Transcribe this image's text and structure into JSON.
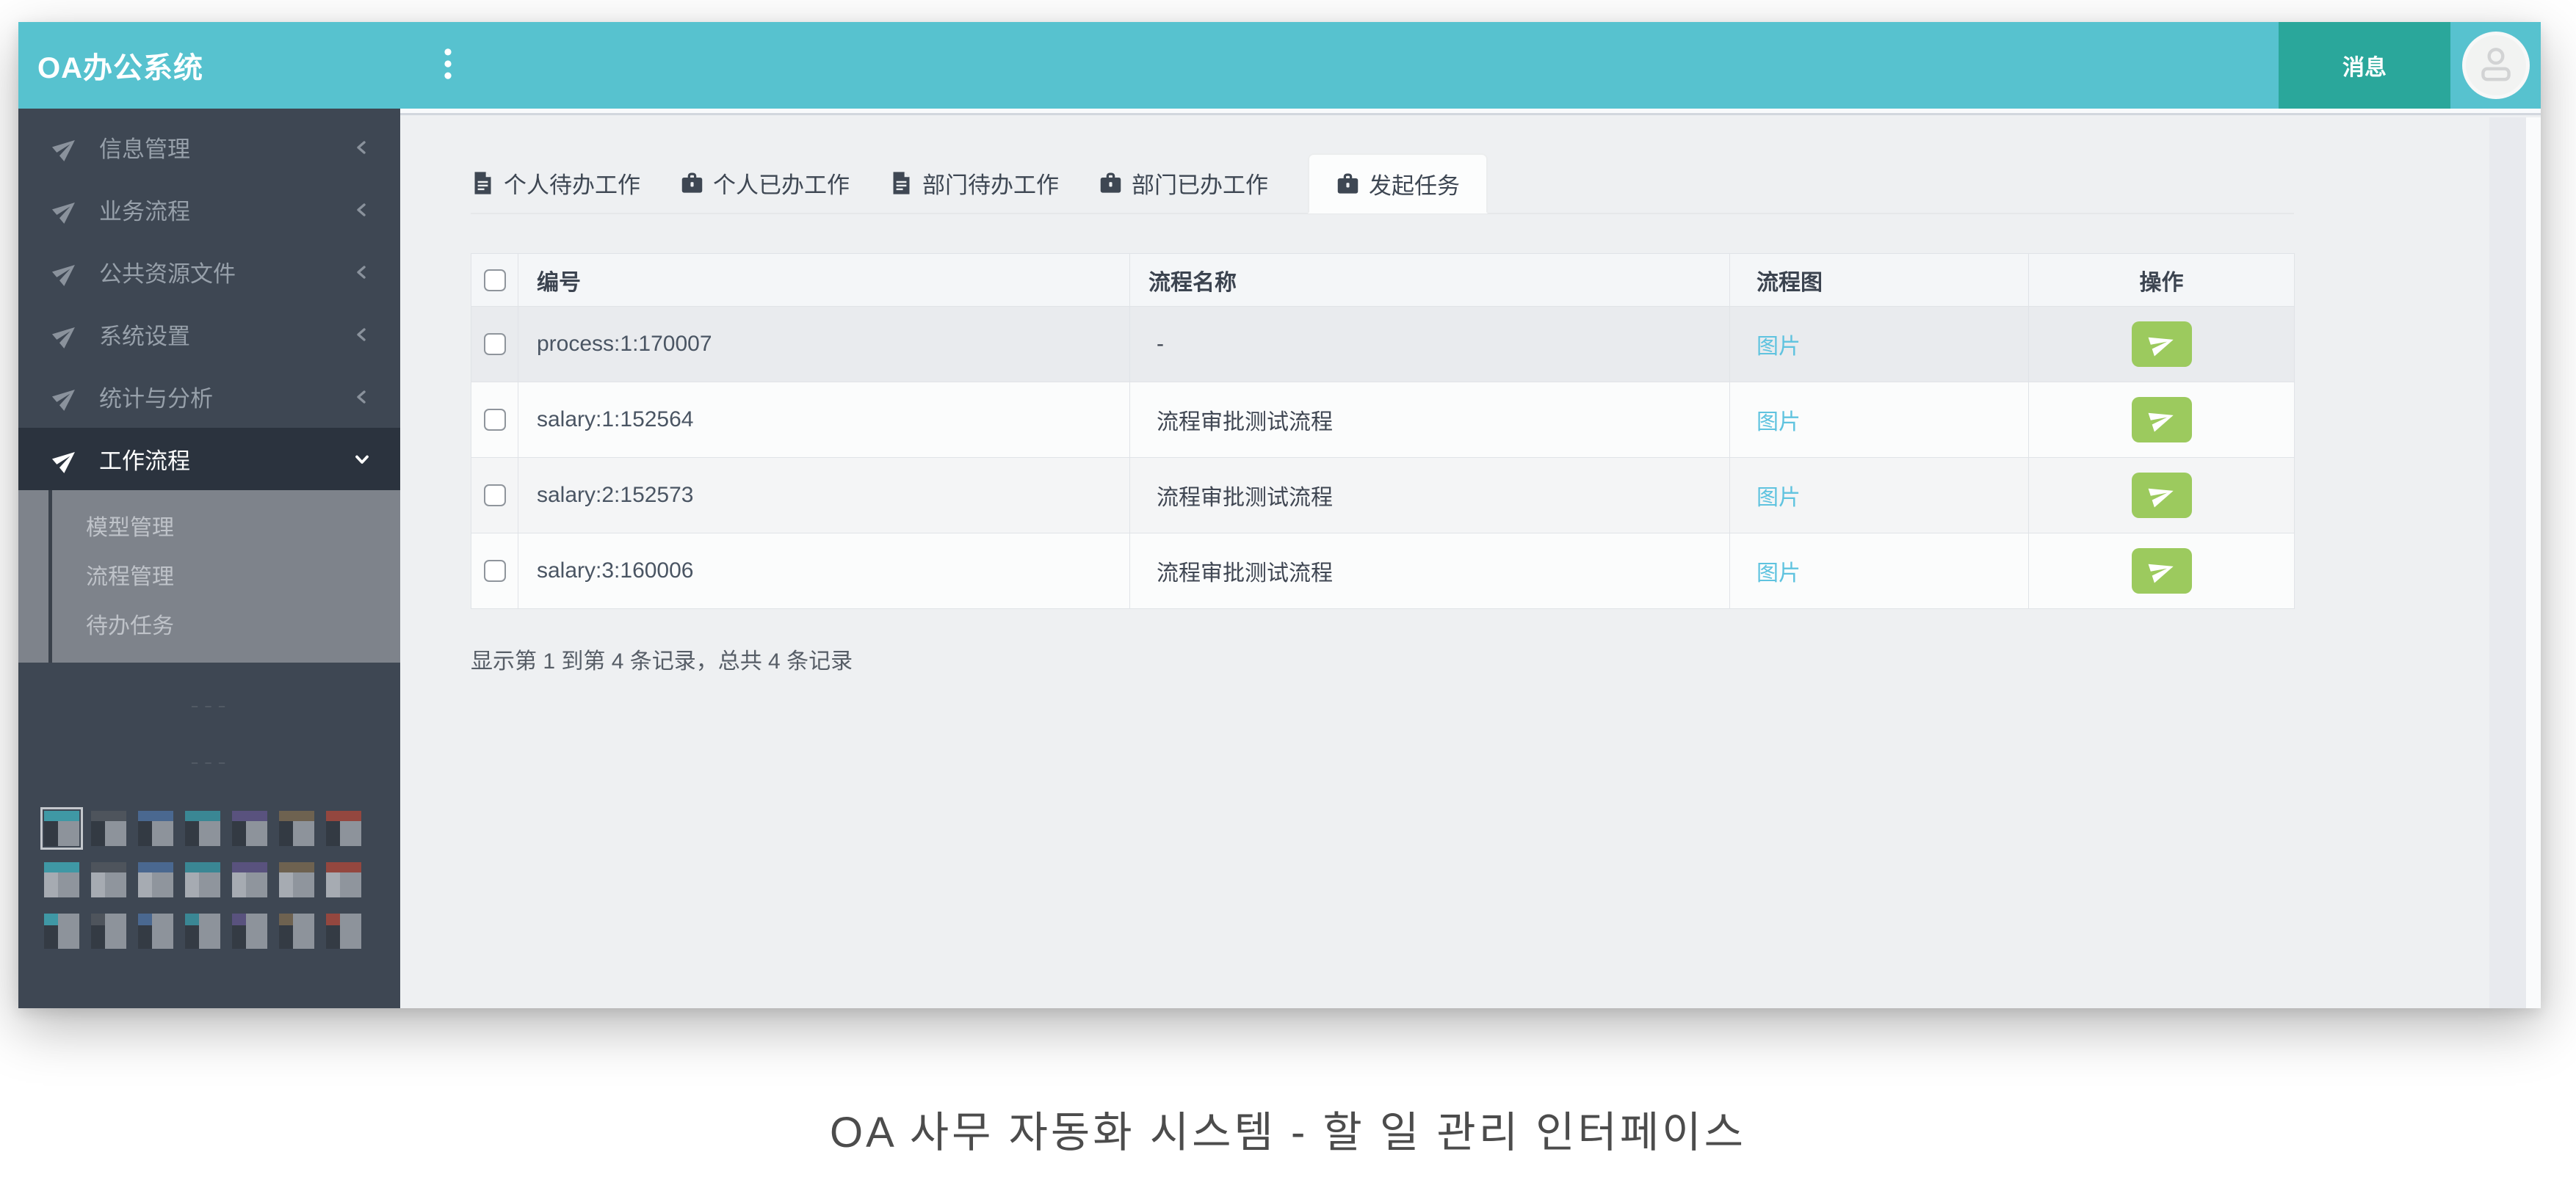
{
  "colors": {
    "header_teal": "#57c2cf",
    "message_teal": "#2aa79b",
    "send_green": "#9cca5e",
    "link_blue": "#5fc3df",
    "sidebar_dark": "#3e4753"
  },
  "header": {
    "logo": "OA办公系统",
    "toggle_icon": "vertical-ellipsis-icon",
    "message_label": "消息",
    "avatar_icon": "person-icon"
  },
  "sidebar": {
    "items": [
      {
        "label": "信息管理",
        "icon": "rocket-icon",
        "chevron": "chevron-left-icon",
        "active": false
      },
      {
        "label": "业务流程",
        "icon": "rocket-icon",
        "chevron": "chevron-left-icon",
        "active": false
      },
      {
        "label": "公共资源文件",
        "icon": "rocket-icon",
        "chevron": "chevron-left-icon",
        "active": false
      },
      {
        "label": "系统设置",
        "icon": "rocket-icon",
        "chevron": "chevron-left-icon",
        "active": false
      },
      {
        "label": "统计与分析",
        "icon": "rocket-icon",
        "chevron": "chevron-left-icon",
        "active": false
      },
      {
        "label": "工作流程",
        "icon": "rocket-icon",
        "chevron": "chevron-down-icon",
        "active": true
      }
    ],
    "submenu": [
      {
        "label": "模型管理"
      },
      {
        "label": "流程管理"
      },
      {
        "label": "待办任务"
      }
    ],
    "markers": {
      "m1": "– – –",
      "m2": "– – –"
    },
    "themes": [
      {
        "style": "dark",
        "color": "#3f98a5",
        "selected": true
      },
      {
        "style": "dark",
        "color": "#4e545c",
        "selected": false
      },
      {
        "style": "dark",
        "color": "#4a6890",
        "selected": false
      },
      {
        "style": "dark",
        "color": "#3a8794",
        "selected": false
      },
      {
        "style": "dark",
        "color": "#59527e",
        "selected": false
      },
      {
        "style": "dark",
        "color": "#6e6250",
        "selected": false
      },
      {
        "style": "dark",
        "color": "#94473f",
        "selected": false
      },
      {
        "style": "light",
        "color": "#3f98a5",
        "selected": false
      },
      {
        "style": "light",
        "color": "#4e545c",
        "selected": false
      },
      {
        "style": "light",
        "color": "#4a6890",
        "selected": false
      },
      {
        "style": "light",
        "color": "#3a8794",
        "selected": false
      },
      {
        "style": "light",
        "color": "#59527e",
        "selected": false
      },
      {
        "style": "light",
        "color": "#6e6250",
        "selected": false
      },
      {
        "style": "light",
        "color": "#94473f",
        "selected": false
      },
      {
        "style": "boxed",
        "color": "#3f98a5",
        "selected": false
      },
      {
        "style": "boxed",
        "color": "#4e545c",
        "selected": false
      },
      {
        "style": "boxed",
        "color": "#4a6890",
        "selected": false
      },
      {
        "style": "boxed",
        "color": "#3a8794",
        "selected": false
      },
      {
        "style": "boxed",
        "color": "#59527e",
        "selected": false
      },
      {
        "style": "boxed",
        "color": "#6e6250",
        "selected": false
      },
      {
        "style": "boxed",
        "color": "#94473f",
        "selected": false
      }
    ]
  },
  "tabs": [
    {
      "label": "个人待办工作",
      "icon": "file-icon",
      "active": false
    },
    {
      "label": "个人已办工作",
      "icon": "briefcase-icon",
      "active": false
    },
    {
      "label": "部门待办工作",
      "icon": "file-icon",
      "active": false
    },
    {
      "label": "部门已办工作",
      "icon": "briefcase-icon",
      "active": false
    },
    {
      "label": "发起任务",
      "icon": "briefcase-icon",
      "active": true
    }
  ],
  "table": {
    "columns": {
      "id": "编号",
      "name": "流程名称",
      "diagram": "流程图",
      "action": "操作"
    },
    "send_icon": "send-icon",
    "rows": [
      {
        "id": "process:1:170007",
        "name": "-",
        "diagram": "图片",
        "shade": "dark"
      },
      {
        "id": "salary:1:152564",
        "name": "流程审批测试流程",
        "diagram": "图片",
        "shade": "light"
      },
      {
        "id": "salary:2:152573",
        "name": "流程审批测试流程",
        "diagram": "图片",
        "shade": "mid"
      },
      {
        "id": "salary:3:160006",
        "name": "流程审批测试流程",
        "diagram": "图片",
        "shade": "light"
      }
    ],
    "summary": "显示第 1 到第 4 条记录，总共 4 条记录"
  },
  "caption": "OA 사무 자동화 시스템 - 할 일 관리 인터페이스"
}
